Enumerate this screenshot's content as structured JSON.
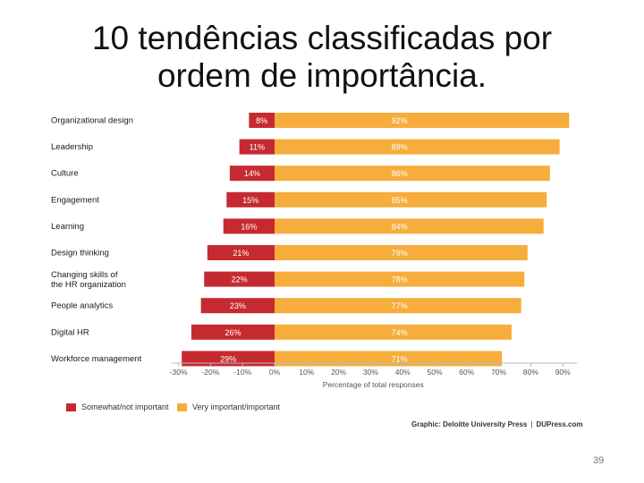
{
  "slide": {
    "title_line1": "10 tendências classificadas por",
    "title_line2": "ordem de importância.",
    "page_number": "39"
  },
  "credit": {
    "text": "Graphic: Deloitte University Press",
    "separator": "|",
    "site": "DUPress.com"
  },
  "colors": {
    "not_important": "#c62a31",
    "important": "#f6ad3c",
    "axis": "#bbbbbb",
    "label_text": "#1a1a1a"
  },
  "chart_data": {
    "type": "bar",
    "orientation": "horizontal",
    "stacked": "diverging",
    "categories": [
      "Organizational design",
      "Leadership",
      "Culture",
      "Engagement",
      "Learning",
      "Design thinking",
      "Changing skills of the HR organization",
      "People analytics",
      "Digital HR",
      "Workforce management"
    ],
    "series": [
      {
        "name": "Somewhat/not important",
        "values": [
          -8,
          -11,
          -14,
          -15,
          -16,
          -21,
          -22,
          -23,
          -26,
          -29
        ],
        "labels": [
          "8%",
          "11%",
          "14%",
          "15%",
          "16%",
          "21%",
          "22%",
          "23%",
          "26%",
          "29%"
        ],
        "color": "#c62a31"
      },
      {
        "name": "Very important/important",
        "values": [
          92,
          89,
          86,
          85,
          84,
          79,
          78,
          77,
          74,
          71
        ],
        "labels": [
          "92%",
          "89%",
          "86%",
          "85%",
          "84%",
          "79%",
          "78%",
          "77%",
          "74%",
          "71%"
        ],
        "color": "#f6ad3c"
      }
    ],
    "xlim": [
      -30,
      90
    ],
    "xticks": [
      -30,
      -20,
      -10,
      0,
      10,
      20,
      30,
      40,
      50,
      60,
      70,
      80,
      90
    ],
    "xtick_labels": [
      "-30%",
      "-20%",
      "-10%",
      "0%",
      "10%",
      "20%",
      "30%",
      "40%",
      "50%",
      "60%",
      "70%",
      "80%",
      "90%"
    ],
    "xlabel": "Percentage of total responses",
    "ylabel": "",
    "legend_position": "bottom-left",
    "grid": false
  }
}
